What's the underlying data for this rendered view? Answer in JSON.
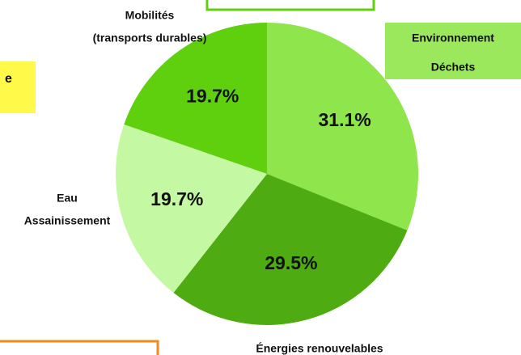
{
  "chart_data": {
    "type": "pie",
    "categories": [
      [
        "Environnement",
        "Déchets"
      ],
      [
        "Énergies renouvelables"
      ],
      [
        "Eau",
        "Assainissement"
      ],
      [
        "Mobilités",
        "(transports durables)"
      ]
    ],
    "values": [
      31.1,
      29.5,
      19.7,
      19.7
    ],
    "value_labels": [
      "31.1%",
      "29.5%",
      "19.7%",
      "19.7%"
    ],
    "colors": [
      "#8ee54c",
      "#4fab12",
      "#c5f8a3",
      "#5fd00d"
    ],
    "start_angle": "top",
    "direction": "clockwise"
  },
  "left_box_text": "e"
}
